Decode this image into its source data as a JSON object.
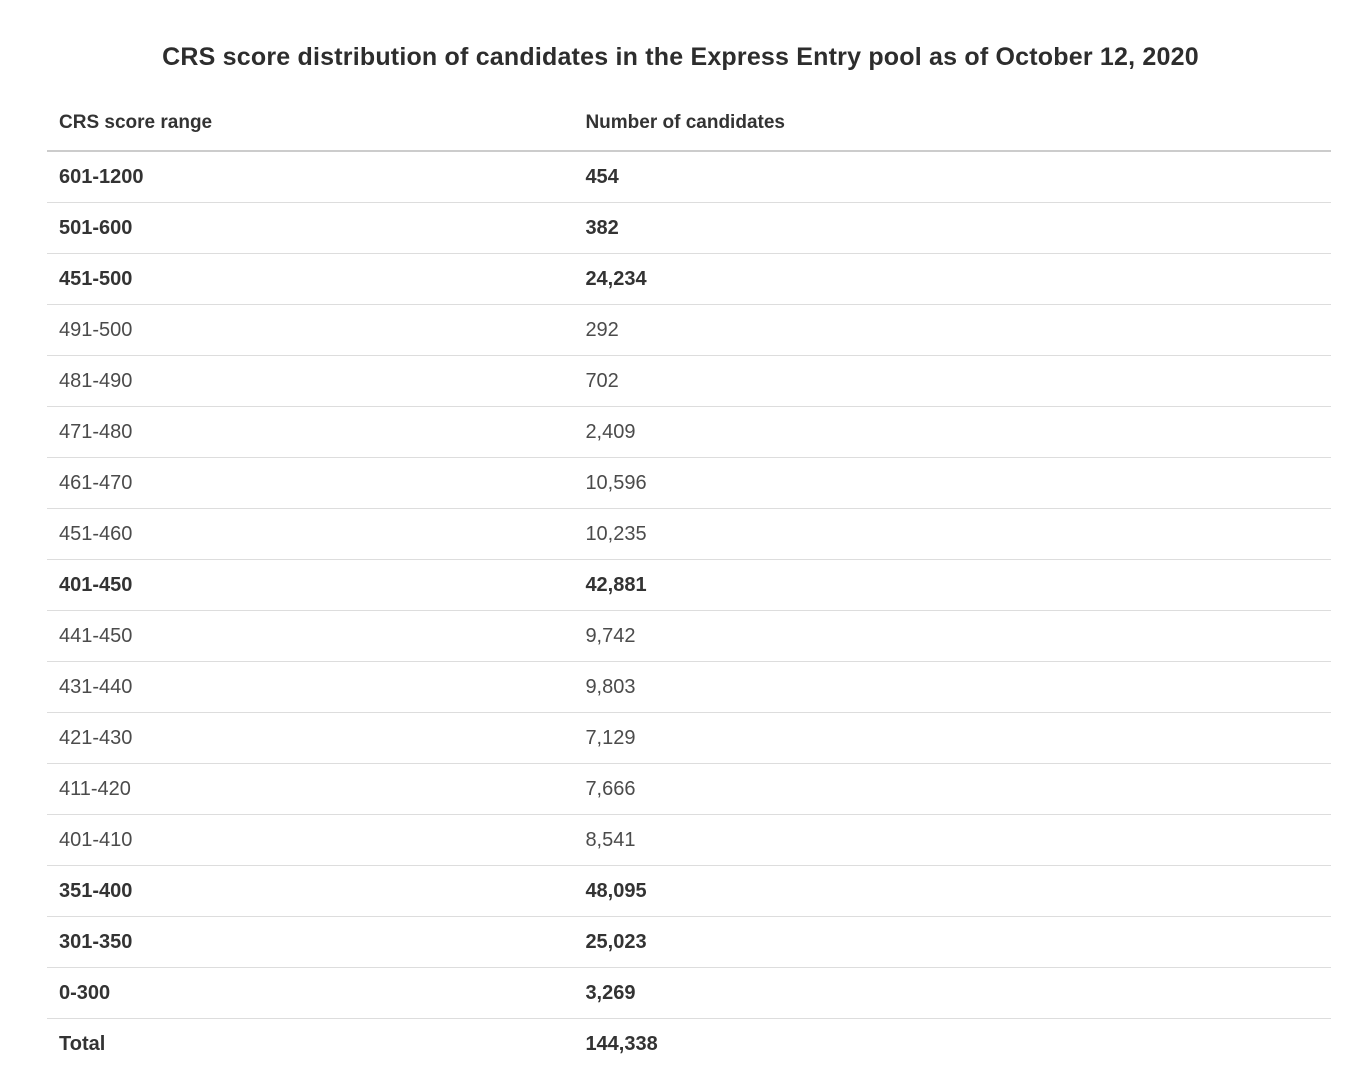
{
  "page": {
    "title": "CRS score distribution of candidates in the Express Entry pool as of October 12, 2020"
  },
  "table": {
    "columns": [
      "CRS score range",
      "Number of candidates"
    ],
    "rows": [
      {
        "range": "601-1200",
        "count": "454",
        "emphasis": true
      },
      {
        "range": "501-600",
        "count": "382",
        "emphasis": true
      },
      {
        "range": "451-500",
        "count": "24,234",
        "emphasis": true
      },
      {
        "range": "491-500",
        "count": "292",
        "emphasis": false
      },
      {
        "range": "481-490",
        "count": "702",
        "emphasis": false
      },
      {
        "range": "471-480",
        "count": "2,409",
        "emphasis": false
      },
      {
        "range": "461-470",
        "count": "10,596",
        "emphasis": false
      },
      {
        "range": "451-460",
        "count": "10,235",
        "emphasis": false
      },
      {
        "range": "401-450",
        "count": "42,881",
        "emphasis": true
      },
      {
        "range": "441-450",
        "count": "9,742",
        "emphasis": false
      },
      {
        "range": "431-440",
        "count": "9,803",
        "emphasis": false
      },
      {
        "range": "421-430",
        "count": "7,129",
        "emphasis": false
      },
      {
        "range": "411-420",
        "count": "7,666",
        "emphasis": false
      },
      {
        "range": "401-410",
        "count": "8,541",
        "emphasis": false
      },
      {
        "range": "351-400",
        "count": "48,095",
        "emphasis": true
      },
      {
        "range": "301-350",
        "count": "25,023",
        "emphasis": true
      },
      {
        "range": "0-300",
        "count": "3,269",
        "emphasis": true
      },
      {
        "range": "Total",
        "count": "144,338",
        "emphasis": true
      }
    ]
  },
  "chart_data": {
    "type": "table",
    "title": "CRS score distribution of candidates in the Express Entry pool as of October 12, 2020",
    "columns": [
      "CRS score range",
      "Number of candidates"
    ],
    "rows": [
      [
        "601-1200",
        454
      ],
      [
        "501-600",
        382
      ],
      [
        "451-500",
        24234
      ],
      [
        "491-500",
        292
      ],
      [
        "481-490",
        702
      ],
      [
        "471-480",
        2409
      ],
      [
        "461-470",
        10596
      ],
      [
        "451-460",
        10235
      ],
      [
        "401-450",
        42881
      ],
      [
        "441-450",
        9742
      ],
      [
        "431-440",
        9803
      ],
      [
        "421-430",
        7129
      ],
      [
        "411-420",
        7666
      ],
      [
        "401-410",
        8541
      ],
      [
        "351-400",
        48095
      ],
      [
        "301-350",
        25023
      ],
      [
        "0-300",
        3269
      ],
      [
        "Total",
        144338
      ]
    ],
    "notes": "Rows for major score bands (601-1200, 501-600, 451-500, 401-450, 351-400, 301-350, 0-300, Total) are shown in bold; ten-point sub-ranges are regular weight."
  },
  "colors": {
    "background": "#ffffff",
    "text_primary": "#333333",
    "text_secondary": "#4b4b4b",
    "header_border": "#cccccc",
    "row_border": "#dddddd"
  }
}
